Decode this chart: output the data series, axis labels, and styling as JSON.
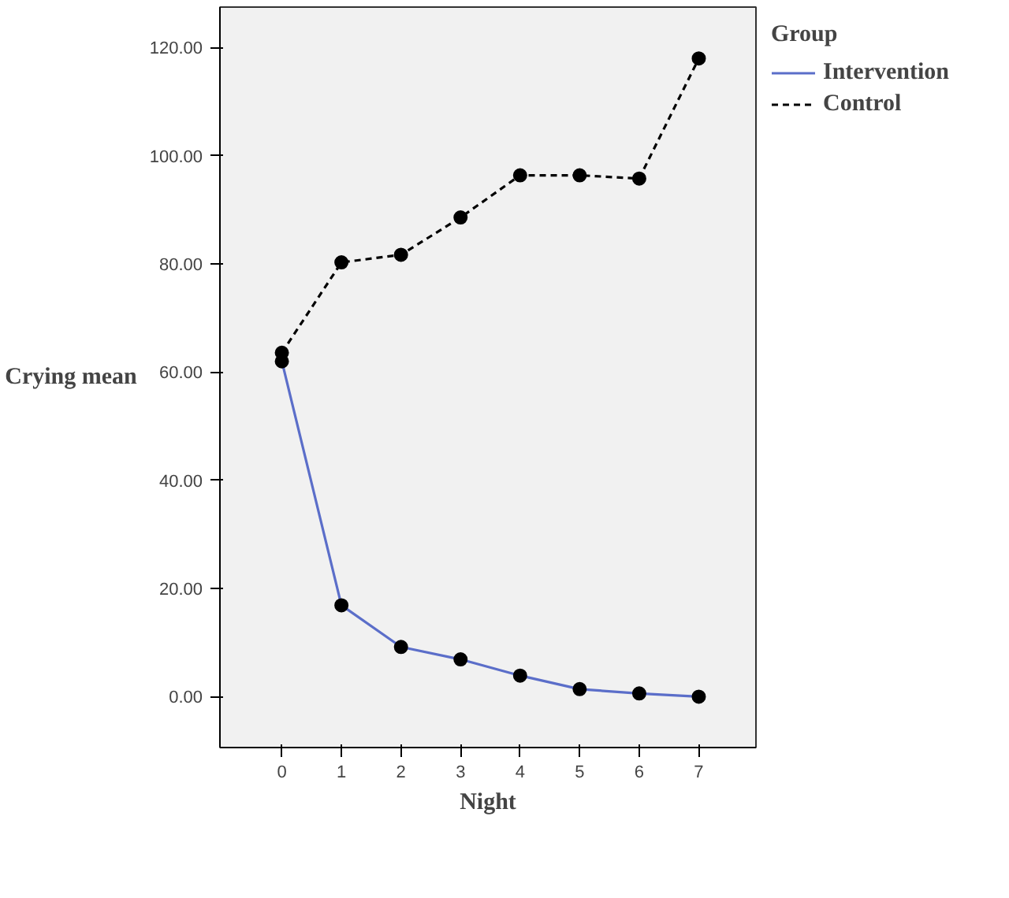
{
  "chart_data": {
    "type": "line",
    "xlabel": "Night",
    "ylabel": "Crying mean",
    "legend_title": "Group",
    "x": [
      0,
      1,
      2,
      3,
      4,
      5,
      6,
      7
    ],
    "series": [
      {
        "name": "Intervention",
        "color": "#5b6ec9",
        "line_style": "solid",
        "values": [
          62,
          16.9,
          9.2,
          6.9,
          3.9,
          1.4,
          0.6,
          0
        ]
      },
      {
        "name": "Control",
        "color": "#000000",
        "line_style": "dashed",
        "values": [
          63.6,
          80.3,
          81.7,
          88.6,
          96.4,
          96.4,
          95.8,
          118
        ]
      }
    ],
    "marker": "circle",
    "xlim": [
      -1.04,
      7.96
    ],
    "ylim": [
      -9.4,
      127.5
    ],
    "xticks": [
      0,
      1,
      2,
      3,
      4,
      5,
      6,
      7
    ],
    "yticks": [
      {
        "value": 0,
        "label": "0.00"
      },
      {
        "value": 20,
        "label": "20.00"
      },
      {
        "value": 40,
        "label": "40.00"
      },
      {
        "value": 60,
        "label": "60.00"
      },
      {
        "value": 80,
        "label": "80.00"
      },
      {
        "value": 100,
        "label": "100.00"
      },
      {
        "value": 120,
        "label": "120.00"
      }
    ],
    "grid": false,
    "legend": "top right"
  }
}
